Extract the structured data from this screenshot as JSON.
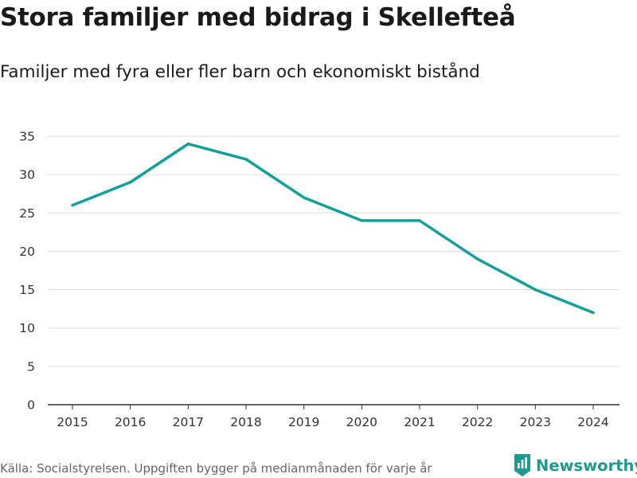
{
  "header": {
    "title": "Stora familjer med bidrag i Skellefteå",
    "subtitle": "Familjer med fyra eller fler barn och ekonomiskt bistånd"
  },
  "footer": {
    "source": "Källa: Socialstyrelsen. Uppgiften bygger på medianmånaden för varje år",
    "brand": "Newsworthy",
    "brand_icon": "newsworthy-logo-icon"
  },
  "colors": {
    "line": "#14a09a",
    "grid": "#dddddd",
    "axis": "#333333",
    "brand": "#1f9a8e"
  },
  "chart_data": {
    "type": "line",
    "title": "Stora familjer med bidrag i Skellefteå",
    "subtitle": "Familjer med fyra eller fler barn och ekonomiskt bistånd",
    "xlabel": "",
    "ylabel": "",
    "categories": [
      "2015",
      "2016",
      "2017",
      "2018",
      "2019",
      "2020",
      "2021",
      "2022",
      "2023",
      "2024"
    ],
    "series": [
      {
        "name": "Familjer med fyra eller fler barn och ekonomiskt bistånd",
        "values": [
          26,
          29,
          34,
          32,
          27,
          24,
          24,
          19,
          15,
          12
        ]
      }
    ],
    "ylim": [
      0,
      35
    ],
    "yticks": [
      0,
      5,
      10,
      15,
      20,
      25,
      30,
      35
    ],
    "grid": true,
    "legend": "none"
  }
}
